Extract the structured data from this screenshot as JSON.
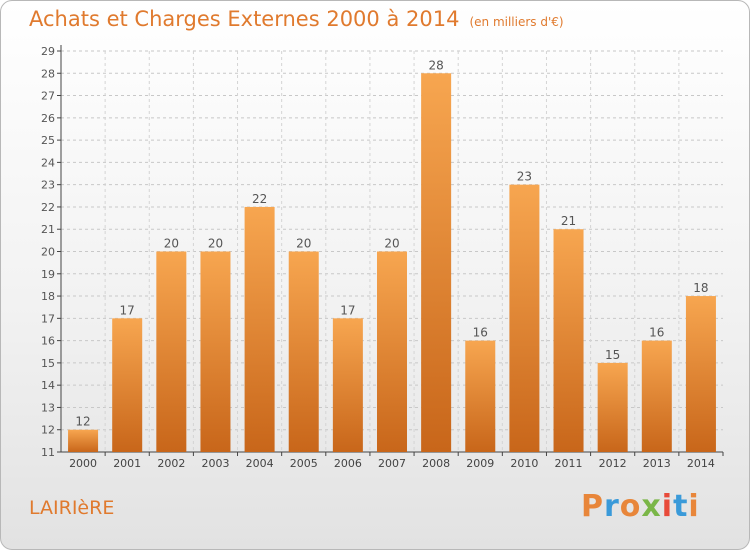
{
  "chart_data": {
    "type": "bar",
    "title": "Achats et Charges Externes 2000 à 2014",
    "subtitle": "(en milliers d'€)",
    "categories": [
      "2000",
      "2001",
      "2002",
      "2003",
      "2004",
      "2005",
      "2006",
      "2007",
      "2008",
      "2009",
      "2010",
      "2011",
      "2012",
      "2013",
      "2014"
    ],
    "values": [
      12,
      17,
      20,
      20,
      22,
      20,
      17,
      20,
      28,
      16,
      23,
      21,
      15,
      16,
      18
    ],
    "ylim": [
      11,
      29
    ],
    "yticks": [
      11,
      12,
      13,
      14,
      15,
      16,
      17,
      18,
      19,
      20,
      21,
      22,
      23,
      24,
      25,
      26,
      27,
      28,
      29
    ],
    "grid": true,
    "bar_color_top": "#f7a650",
    "bar_color_bottom": "#c8661a"
  },
  "footer": {
    "commune": "LAIRIèRE",
    "brand": "Proxiti",
    "brand_colors": [
      "#e8863a",
      "#3a9ad9",
      "#e8863a",
      "#7ab648",
      "#e84a3a",
      "#3a9ad9",
      "#e8863a"
    ]
  }
}
